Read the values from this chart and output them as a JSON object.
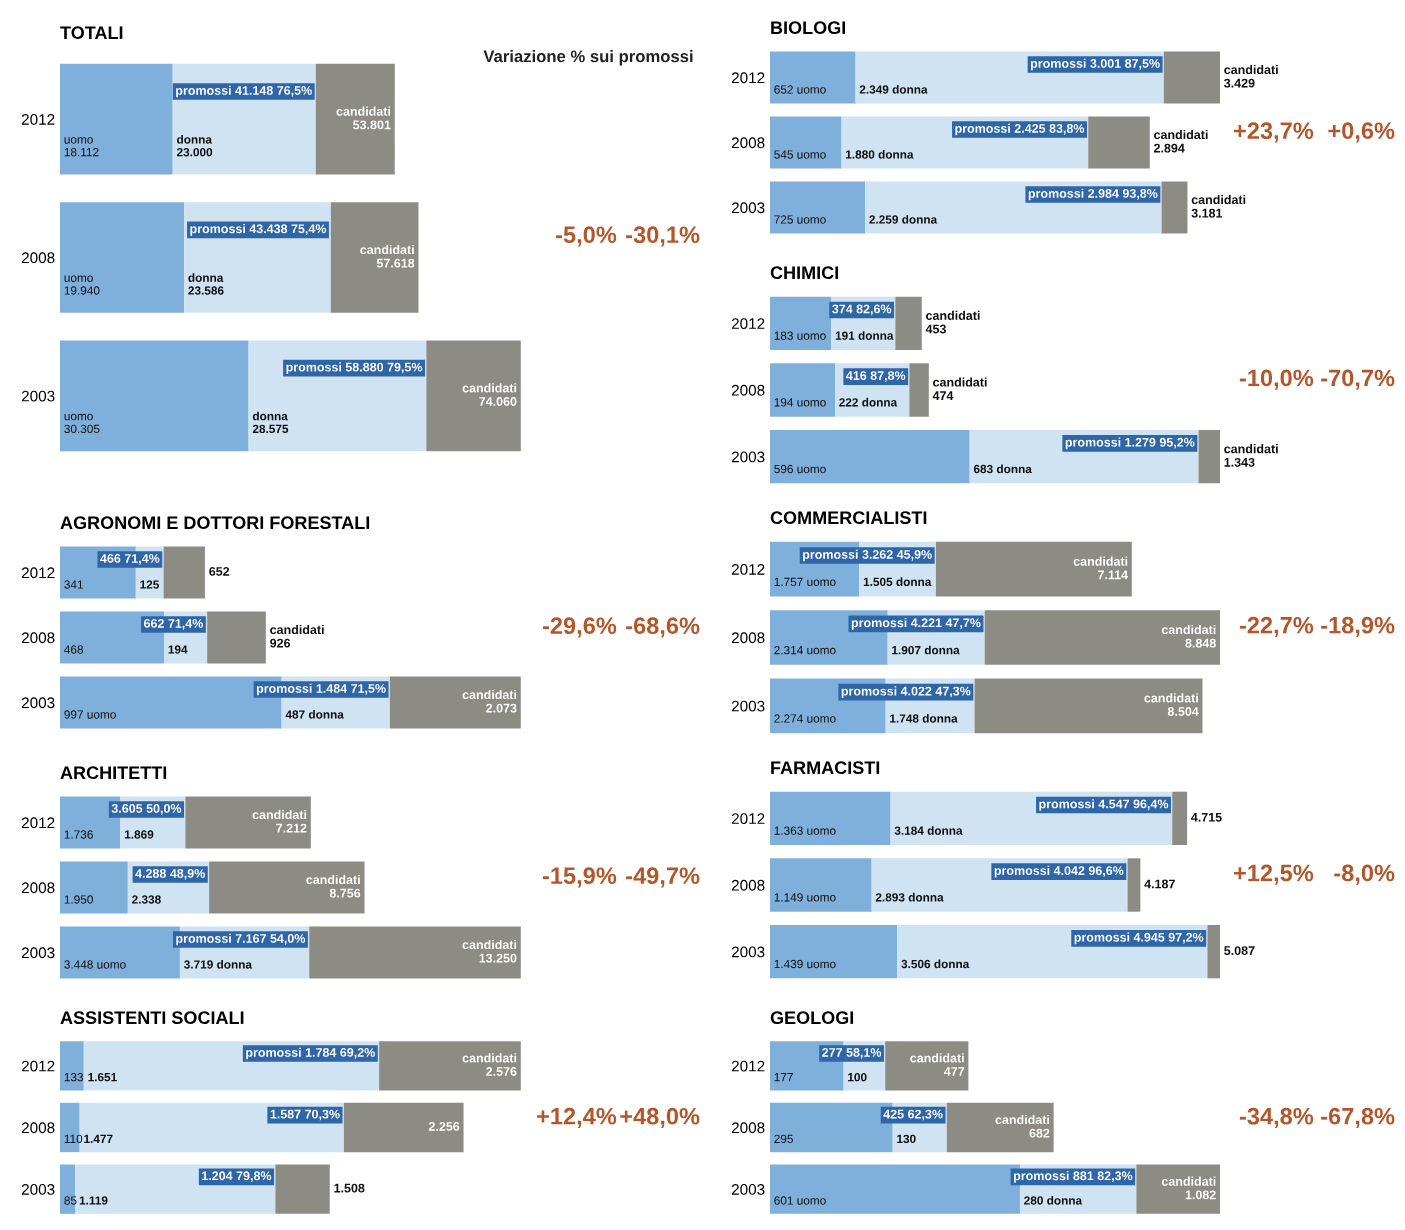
{
  "chart_data": [
    {
      "type": "bar",
      "orientation": "horizontal",
      "stacked": true,
      "tick_labels": "y",
      "title": "TOTALI",
      "subtitle": "Variazione % sui promossi",
      "categories": [
        "2012",
        "2008",
        "2003"
      ],
      "series": [
        {
          "color": "#7fb0dc",
          "values": [
            18112,
            19940,
            30305
          ],
          "value_labels": [
            "uomo\n18.112",
            "uomo\n19.940",
            "uomo\n30.305"
          ]
        },
        {
          "color": "#cfe3f3",
          "values": [
            23000,
            23586,
            28575
          ],
          "value_labels": [
            "donna\n23.000",
            "donna\n23.586",
            "donna\n28.575"
          ]
        },
        {
          "color": "#8c8c84",
          "values": [
            12689,
            14092,
            15180
          ]
        }
      ],
      "annotations": [
        {
          "text": "promossi 41.148 76,5%",
          "x": 41148,
          "y": "2012"
        },
        {
          "text": "promossi 43.438 75,4%",
          "x": 43438,
          "y": "2008"
        },
        {
          "text": "promossi 58.880 79,5%",
          "x": 58880,
          "y": "2003"
        },
        {
          "text": "candidati\n53.801",
          "x": 53801,
          "y": "2012"
        },
        {
          "text": "candidati\n57.618",
          "x": 57618,
          "y": "2008"
        },
        {
          "text": "candidati\n74.060",
          "x": 74060,
          "y": "2003"
        },
        "-5,0%",
        "-30,1%"
      ]
    },
    {
      "type": "bar",
      "orientation": "horizontal",
      "stacked": true,
      "tick_labels": "y",
      "title": "AGRONOMI E DOTTORI FORESTALI",
      "categories": [
        "2012",
        "2008",
        "2003"
      ],
      "series": [
        {
          "color": "#7fb0dc",
          "values": [
            341,
            468,
            997
          ],
          "value_labels": [
            "341",
            "468",
            "997 uomo"
          ]
        },
        {
          "color": "#cfe3f3",
          "values": [
            125,
            194,
            487
          ],
          "value_labels": [
            "125",
            "194",
            "487 donna"
          ]
        },
        {
          "color": "#8c8c84",
          "values": [
            186,
            264,
            589
          ]
        }
      ],
      "annotations": [
        {
          "text": "466 71,4%",
          "x": 466,
          "y": "2012"
        },
        {
          "text": "662 71,4%",
          "x": 662,
          "y": "2008"
        },
        {
          "text": "promossi 1.484 71,5%",
          "x": 1484,
          "y": "2003"
        },
        {
          "text": "652",
          "x": 652,
          "y": "2012"
        },
        {
          "text": "candidati\n926",
          "x": 926,
          "y": "2008"
        },
        {
          "text": "candidati\n2.073",
          "x": 2073,
          "y": "2003"
        },
        "-29,6%",
        "-68,6%"
      ]
    },
    {
      "type": "bar",
      "orientation": "horizontal",
      "stacked": true,
      "tick_labels": "y",
      "title": "ARCHITETTI",
      "categories": [
        "2012",
        "2008",
        "2003"
      ],
      "series": [
        {
          "color": "#7fb0dc",
          "values": [
            1736,
            1950,
            3448
          ],
          "value_labels": [
            "1.736",
            "1.950",
            "3.448 uomo"
          ]
        },
        {
          "color": "#cfe3f3",
          "values": [
            1869,
            2338,
            3719
          ],
          "value_labels": [
            "1.869",
            "2.338",
            "3.719 donna"
          ]
        },
        {
          "color": "#8c8c84",
          "values": [
            3607,
            4468,
            6083
          ]
        }
      ],
      "annotations": [
        {
          "text": "3.605 50,0%",
          "x": 3605,
          "y": "2012"
        },
        {
          "text": "4.288 48,9%",
          "x": 4288,
          "y": "2008"
        },
        {
          "text": "promossi 7.167 54,0%",
          "x": 7167,
          "y": "2003"
        },
        {
          "text": "candidati\n7.212",
          "x": 7212,
          "y": "2012"
        },
        {
          "text": "candidati\n8.756",
          "x": 8756,
          "y": "2008"
        },
        {
          "text": "candidati\n13.250",
          "x": 13250,
          "y": "2003"
        },
        "-15,9%",
        "-49,7%"
      ]
    },
    {
      "type": "bar",
      "orientation": "horizontal",
      "stacked": true,
      "tick_labels": "y",
      "title": "ASSISTENTI SOCIALI",
      "categories": [
        "2012",
        "2008",
        "2003"
      ],
      "series": [
        {
          "color": "#7fb0dc",
          "values": [
            133,
            110,
            85
          ],
          "value_labels": [
            "133",
            "110",
            "85"
          ]
        },
        {
          "color": "#cfe3f3",
          "values": [
            1651,
            1477,
            1119
          ],
          "value_labels": [
            "1.651",
            "1.477",
            "1.119"
          ]
        },
        {
          "color": "#8c8c84",
          "values": [
            792,
            669,
            304
          ]
        }
      ],
      "annotations": [
        {
          "text": "promossi 1.784 69,2%",
          "x": 1784,
          "y": "2012"
        },
        {
          "text": "1.587 70,3%",
          "x": 1587,
          "y": "2008"
        },
        {
          "text": "1.204 79,8%",
          "x": 1204,
          "y": "2003"
        },
        {
          "text": "candidati\n2.576",
          "x": 2576,
          "y": "2012"
        },
        {
          "text": "2.256",
          "x": 2256,
          "y": "2008"
        },
        {
          "text": "1.508",
          "x": 1508,
          "y": "2003"
        },
        "+12,4%",
        "+48,0%"
      ]
    },
    {
      "type": "bar",
      "orientation": "horizontal",
      "stacked": true,
      "tick_labels": "y",
      "title": "BIOLOGI",
      "categories": [
        "2012",
        "2008",
        "2003"
      ],
      "series": [
        {
          "color": "#7fb0dc",
          "values": [
            652,
            545,
            725
          ],
          "value_labels": [
            "652 uomo",
            "545 uomo",
            "725 uomo"
          ]
        },
        {
          "color": "#cfe3f3",
          "values": [
            2349,
            1880,
            2259
          ],
          "value_labels": [
            "2.349 donna",
            "1.880 donna",
            "2.259 donna"
          ]
        },
        {
          "color": "#8c8c84",
          "values": [
            428,
            469,
            197
          ]
        }
      ],
      "annotations": [
        {
          "text": "promossi 3.001 87,5%",
          "x": 3001,
          "y": "2012"
        },
        {
          "text": "promossi 2.425 83,8%",
          "x": 2425,
          "y": "2008"
        },
        {
          "text": "promossi 2.984 93,8%",
          "x": 2984,
          "y": "2003"
        },
        {
          "text": "candidati\n3.429",
          "x": 3429,
          "y": "2012"
        },
        {
          "text": "candidati\n2.894",
          "x": 2894,
          "y": "2008"
        },
        {
          "text": "candidati\n3.181",
          "x": 3181,
          "y": "2003"
        },
        "+23,7%",
        "+0,6%"
      ]
    },
    {
      "type": "bar",
      "orientation": "horizontal",
      "stacked": true,
      "tick_labels": "y",
      "title": "CHIMICI",
      "categories": [
        "2012",
        "2008",
        "2003"
      ],
      "series": [
        {
          "color": "#7fb0dc",
          "values": [
            183,
            194,
            596
          ],
          "value_labels": [
            "183 uomo",
            "194 uomo",
            "596 uomo"
          ]
        },
        {
          "color": "#cfe3f3",
          "values": [
            191,
            222,
            683
          ],
          "value_labels": [
            "191 donna",
            "222 donna",
            "683 donna"
          ]
        },
        {
          "color": "#8c8c84",
          "values": [
            79,
            58,
            64
          ]
        }
      ],
      "annotations": [
        {
          "text": "374 82,6%",
          "x": 374,
          "y": "2012"
        },
        {
          "text": "416 87,8%",
          "x": 416,
          "y": "2008"
        },
        {
          "text": "promossi 1.279 95,2%",
          "x": 1279,
          "y": "2003"
        },
        {
          "text": "candidati\n453",
          "x": 453,
          "y": "2012"
        },
        {
          "text": "candidati\n474",
          "x": 474,
          "y": "2008"
        },
        {
          "text": "candidati\n1.343",
          "x": 1343,
          "y": "2003"
        },
        "-10,0%",
        "-70,7%"
      ]
    },
    {
      "type": "bar",
      "orientation": "horizontal",
      "stacked": true,
      "tick_labels": "y",
      "title": "COMMERCIALISTI",
      "categories": [
        "2012",
        "2008",
        "2003"
      ],
      "series": [
        {
          "color": "#7fb0dc",
          "values": [
            1757,
            2314,
            2274
          ],
          "value_labels": [
            "1.757 uomo",
            "2.314 uomo",
            "2.274 uomo"
          ]
        },
        {
          "color": "#cfe3f3",
          "values": [
            1505,
            1907,
            1748
          ],
          "value_labels": [
            "1.505 donna",
            "1.907 donna",
            "1.748 donna"
          ]
        },
        {
          "color": "#8c8c84",
          "values": [
            3852,
            4627,
            4482
          ]
        }
      ],
      "annotations": [
        {
          "text": "promossi 3.262 45,9%",
          "x": 3262,
          "y": "2012"
        },
        {
          "text": "promossi 4.221 47,7%",
          "x": 4221,
          "y": "2008"
        },
        {
          "text": "promossi 4.022 47,3%",
          "x": 4022,
          "y": "2003"
        },
        {
          "text": "candidati\n7.114",
          "x": 7114,
          "y": "2012"
        },
        {
          "text": "candidati\n8.848",
          "x": 8848,
          "y": "2008"
        },
        {
          "text": "candidati\n8.504",
          "x": 8504,
          "y": "2003"
        },
        "-22,7%",
        "-18,9%"
      ]
    },
    {
      "type": "bar",
      "orientation": "horizontal",
      "stacked": true,
      "tick_labels": "y",
      "title": "FARMACISTI",
      "categories": [
        "2012",
        "2008",
        "2003"
      ],
      "series": [
        {
          "color": "#7fb0dc",
          "values": [
            1363,
            1149,
            1439
          ],
          "value_labels": [
            "1.363 uomo",
            "1.149 uomo",
            "1.439 uomo"
          ]
        },
        {
          "color": "#cfe3f3",
          "values": [
            3184,
            2893,
            3506
          ],
          "value_labels": [
            "3.184 donna",
            "2.893 donna",
            "3.506 donna"
          ]
        },
        {
          "color": "#8c8c84",
          "values": [
            168,
            145,
            142
          ]
        }
      ],
      "annotations": [
        {
          "text": "promossi 4.547 96,4%",
          "x": 4547,
          "y": "2012"
        },
        {
          "text": "promossi 4.042 96,6%",
          "x": 4042,
          "y": "2008"
        },
        {
          "text": "promossi 4.945 97,2%",
          "x": 4945,
          "y": "2003"
        },
        {
          "text": "4.715",
          "x": 4715,
          "y": "2012"
        },
        {
          "text": "4.187",
          "x": 4187,
          "y": "2008"
        },
        {
          "text": "5.087",
          "x": 5087,
          "y": "2003"
        },
        "+12,5%",
        "-8,0%"
      ]
    },
    {
      "type": "bar",
      "orientation": "horizontal",
      "stacked": true,
      "tick_labels": "y",
      "title": "GEOLOGI",
      "categories": [
        "2012",
        "2008",
        "2003"
      ],
      "series": [
        {
          "color": "#7fb0dc",
          "values": [
            177,
            295,
            601
          ],
          "value_labels": [
            "177",
            "295",
            "601 uomo"
          ]
        },
        {
          "color": "#cfe3f3",
          "values": [
            100,
            130,
            280
          ],
          "value_labels": [
            "100",
            "130",
            "280 donna"
          ]
        },
        {
          "color": "#8c8c84",
          "values": [
            200,
            257,
            201
          ]
        }
      ],
      "annotations": [
        {
          "text": "277 58,1%",
          "x": 277,
          "y": "2012"
        },
        {
          "text": "425 62,3%",
          "x": 425,
          "y": "2008"
        },
        {
          "text": "promossi 881 82,3%",
          "x": 881,
          "y": "2003"
        },
        {
          "text": "candidati\n477",
          "x": 477,
          "y": "2012"
        },
        {
          "text": "candidati\n682",
          "x": 682,
          "y": "2008"
        },
        {
          "text": "candidati\n1.082",
          "x": 1082,
          "y": "2003"
        },
        "-34,8%",
        "-67,8%"
      ]
    }
  ]
}
